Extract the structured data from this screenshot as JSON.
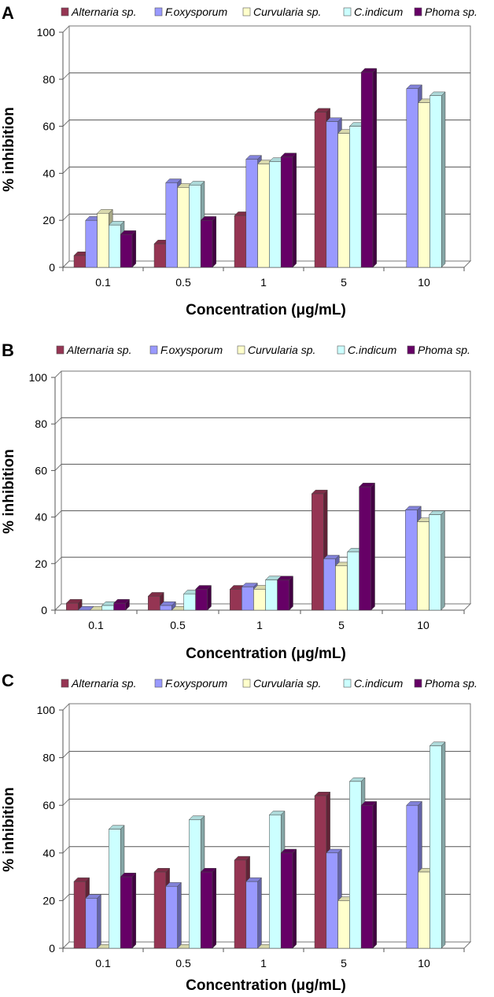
{
  "chart_data": [
    {
      "panel": "A",
      "type": "bar",
      "categories": [
        "0.1",
        "0.5",
        "1",
        "5",
        "10"
      ],
      "series": [
        {
          "name": "Alternaria sp.",
          "color": "#953553",
          "values": [
            5,
            10,
            22,
            66,
            null
          ]
        },
        {
          "name": "F.oxysporum",
          "color": "#9999FF",
          "values": [
            20,
            36,
            46,
            62,
            76
          ]
        },
        {
          "name": "Curvularia sp.",
          "color": "#FFFFCC",
          "values": [
            23,
            34,
            44,
            57,
            70
          ]
        },
        {
          "name": "C.indicum",
          "color": "#CCFFFF",
          "values": [
            18,
            35,
            45,
            60,
            73
          ]
        },
        {
          "name": "Phoma sp.",
          "color": "#660066",
          "values": [
            14,
            20,
            47,
            83,
            null
          ]
        }
      ],
      "yticks": [
        "0",
        "20",
        "40",
        "60",
        "80",
        "100"
      ],
      "ylim": [
        0,
        100
      ],
      "xlabel": "Concentration (μg/mL)",
      "ylabel": "% inhibition"
    },
    {
      "panel": "B",
      "type": "bar",
      "categories": [
        "0.1",
        "0.5",
        "1",
        "5",
        "10"
      ],
      "series": [
        {
          "name": "Alternaria sp.",
          "color": "#953553",
          "values": [
            3,
            6,
            9,
            50,
            null
          ]
        },
        {
          "name": "F.oxysporum",
          "color": "#9999FF",
          "values": [
            0,
            2,
            10,
            22,
            43
          ]
        },
        {
          "name": "Curvularia sp.",
          "color": "#FFFFCC",
          "values": [
            0,
            0,
            9,
            19,
            38
          ]
        },
        {
          "name": "C.indicum",
          "color": "#CCFFFF",
          "values": [
            2,
            7,
            13,
            25,
            41
          ]
        },
        {
          "name": "Phoma sp.",
          "color": "#660066",
          "values": [
            3,
            9,
            13,
            53,
            null
          ]
        }
      ],
      "yticks": [
        "0",
        "20",
        "40",
        "60",
        "80",
        "100"
      ],
      "ylim": [
        0,
        100
      ],
      "xlabel": "Concentration (μg/mL)",
      "ylabel": "% inhibition"
    },
    {
      "panel": "C",
      "type": "bar",
      "categories": [
        "0.1",
        "0.5",
        "1",
        "5",
        "10"
      ],
      "series": [
        {
          "name": "Alternaria sp.",
          "color": "#953553",
          "values": [
            28,
            32,
            37,
            64,
            null
          ]
        },
        {
          "name": "F.oxysporum",
          "color": "#9999FF",
          "values": [
            21,
            26,
            28,
            40,
            60
          ]
        },
        {
          "name": "Curvularia sp.",
          "color": "#FFFFCC",
          "values": [
            0,
            0,
            0,
            20,
            32
          ]
        },
        {
          "name": "C.indicum",
          "color": "#CCFFFF",
          "values": [
            50,
            54,
            56,
            70,
            85
          ]
        },
        {
          "name": "Phoma sp.",
          "color": "#660066",
          "values": [
            30,
            32,
            40,
            60,
            null
          ]
        }
      ],
      "yticks": [
        "0",
        "20",
        "40",
        "60",
        "80",
        "100"
      ],
      "ylim": [
        0,
        100
      ],
      "xlabel": "Concentration (μg/mL)",
      "ylabel": "% inhibition"
    }
  ]
}
